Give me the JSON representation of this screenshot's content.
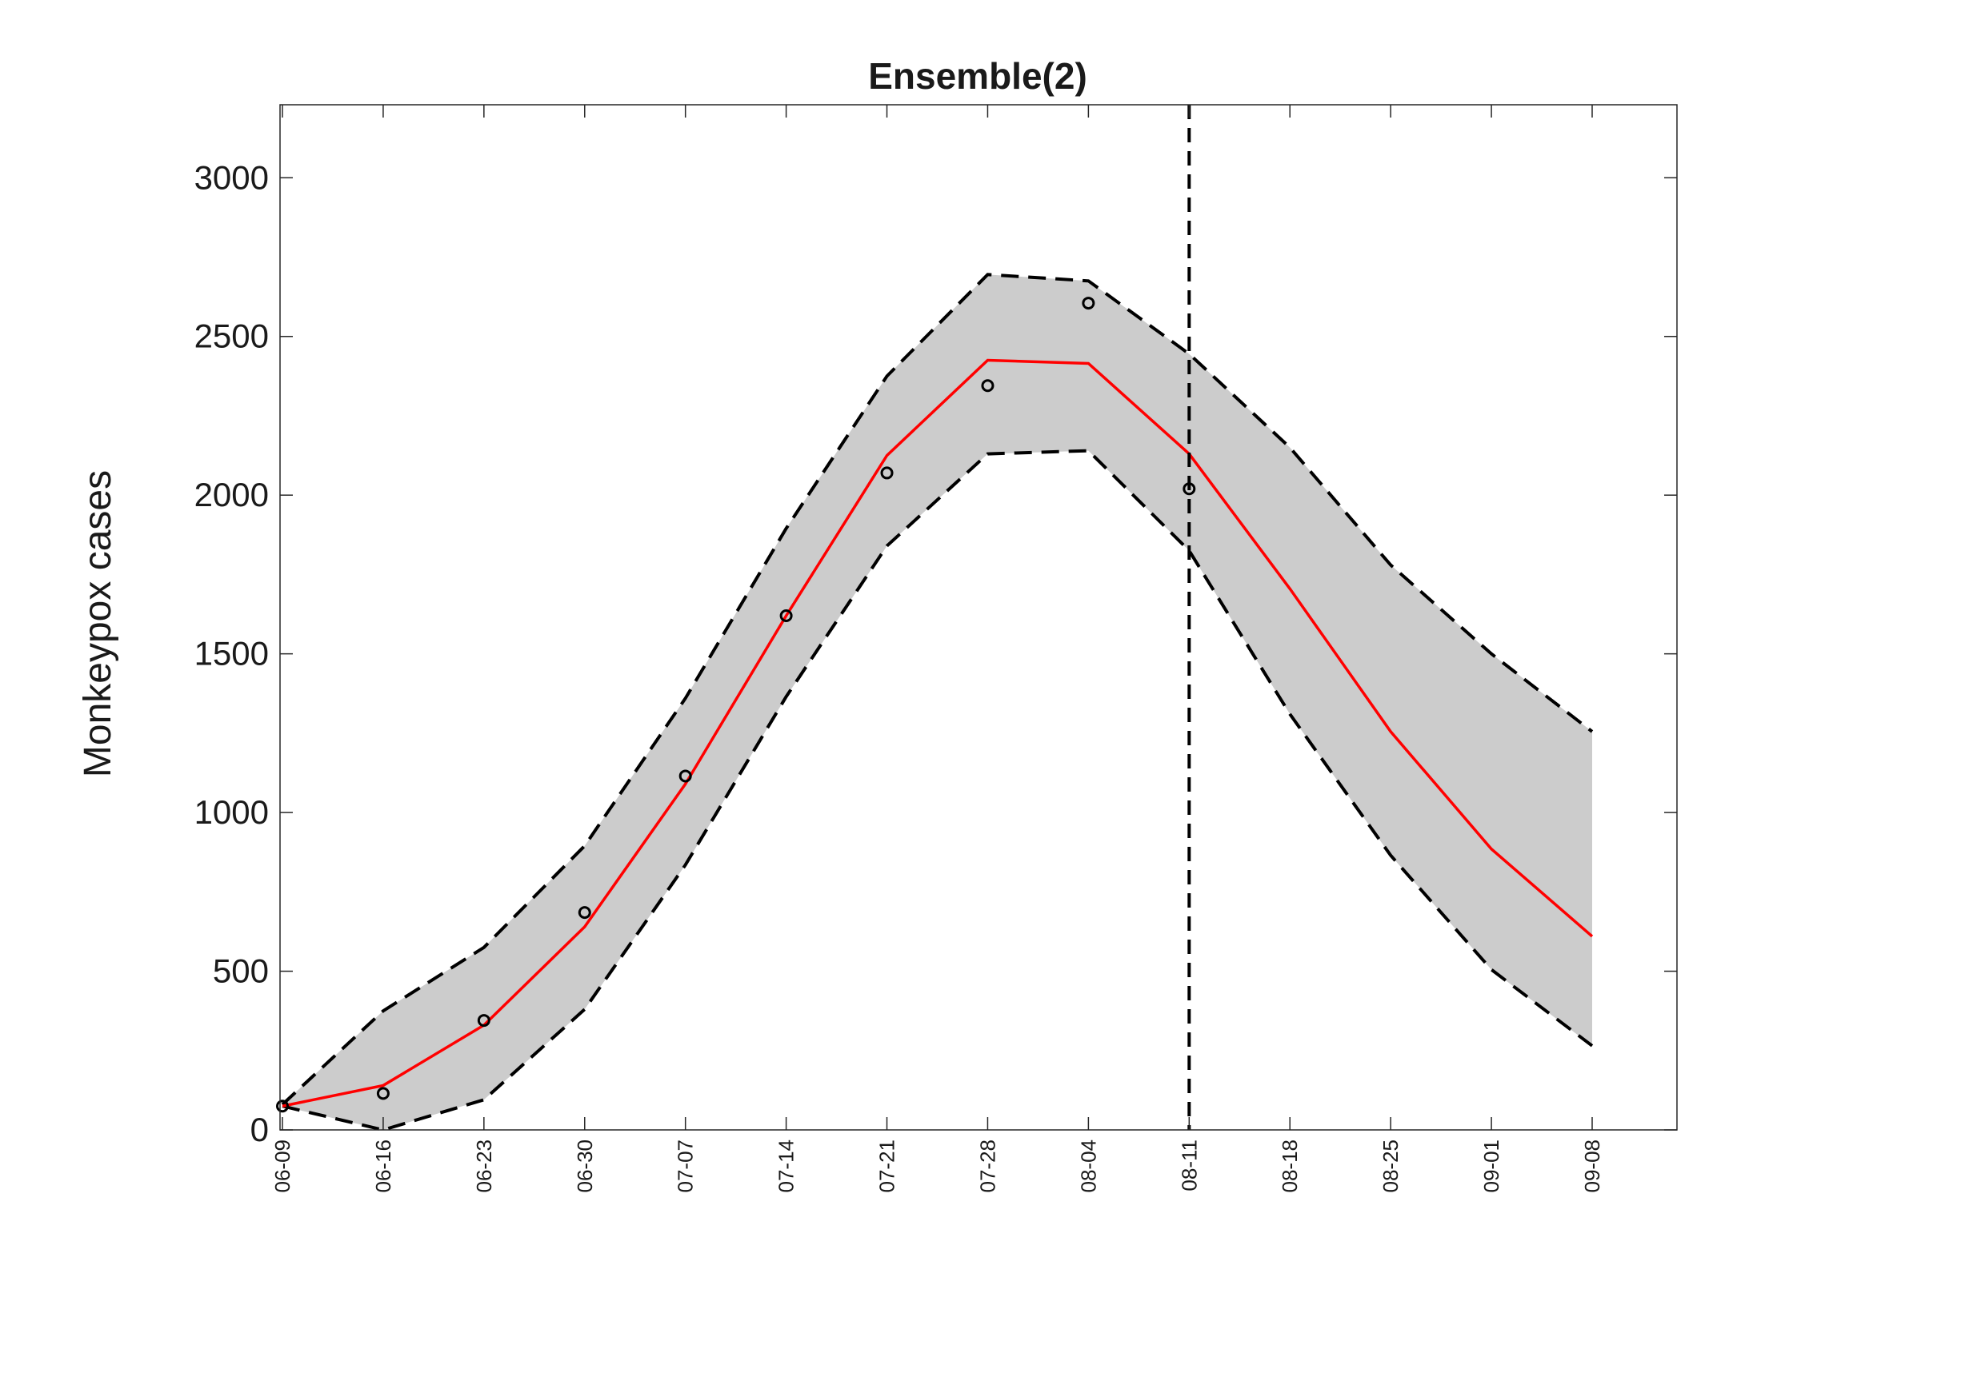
{
  "chart_data": {
    "type": "line",
    "title": "Ensemble(2)",
    "xlabel": "",
    "ylabel": "Monkeypox cases",
    "ylim": [
      0,
      3230
    ],
    "yticks": [
      0,
      500,
      1000,
      1500,
      2000,
      2500,
      3000
    ],
    "x": [
      "06-09",
      "06-16",
      "06-23",
      "06-30",
      "07-07",
      "07-14",
      "07-21",
      "07-28",
      "08-04",
      "08-11",
      "08-18",
      "08-25",
      "09-01",
      "09-08"
    ],
    "forecast_start": "08-11",
    "grid": false,
    "legend": "none",
    "series": [
      {
        "role": "observed",
        "style": "black circles",
        "values": [
          75,
          115,
          345,
          685,
          1115,
          1620,
          2070,
          2345,
          2605,
          2020,
          null,
          null,
          null,
          null
        ]
      },
      {
        "role": "ensemble fit/forecast",
        "style": "red line",
        "values": [
          75,
          140,
          330,
          640,
          1090,
          1620,
          2125,
          2425,
          2415,
          2130,
          1705,
          1255,
          885,
          610
        ]
      },
      {
        "role": "upper bound",
        "style": "black dashed line",
        "values": [
          80,
          375,
          575,
          895,
          1360,
          1895,
          2375,
          2695,
          2675,
          2445,
          2150,
          1780,
          1500,
          1255
        ]
      },
      {
        "role": "lower bound",
        "style": "black dashed line",
        "values": [
          75,
          0,
          95,
          380,
          835,
          1365,
          1840,
          2130,
          2140,
          1825,
          1310,
          865,
          505,
          265
        ]
      }
    ],
    "colors": {
      "band": "#cccccc",
      "mean": "#ff0000",
      "bounds": "#000000",
      "observed": "#000000",
      "axes": "#262626"
    }
  }
}
